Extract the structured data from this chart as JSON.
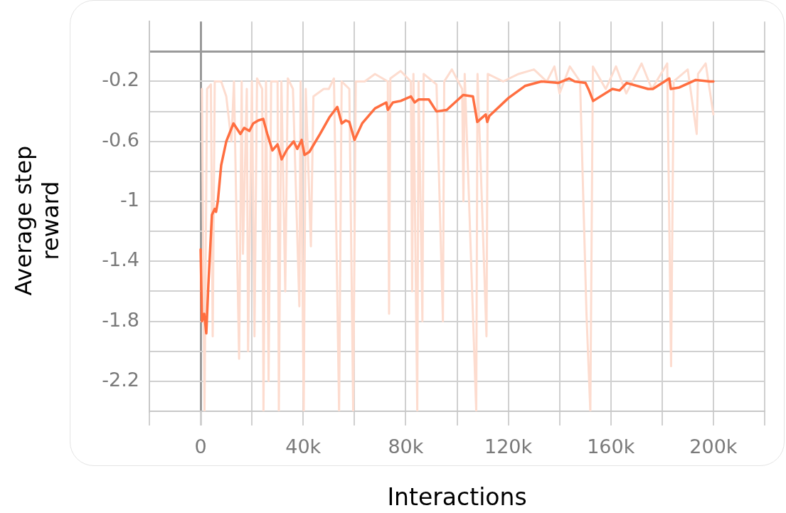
{
  "chart_data": {
    "type": "line",
    "xlabel": "Interactions",
    "ylabel": "Average step reward",
    "grid": true,
    "marker": "none",
    "line_style": "solid",
    "legend": false,
    "xlim": [
      -20000,
      220000
    ],
    "xticks": [
      {
        "value": -20000,
        "label": null
      },
      {
        "value": 0,
        "label": "0"
      },
      {
        "value": 20000,
        "label": null
      },
      {
        "value": 40000,
        "label": "40k"
      },
      {
        "value": 60000,
        "label": null
      },
      {
        "value": 80000,
        "label": "80k"
      },
      {
        "value": 100000,
        "label": null
      },
      {
        "value": 120000,
        "label": "120k"
      },
      {
        "value": 140000,
        "label": null
      },
      {
        "value": 160000,
        "label": "160k"
      },
      {
        "value": 180000,
        "label": null
      },
      {
        "value": 200000,
        "label": "200k"
      },
      {
        "value": 220000,
        "label": null
      }
    ],
    "ylim": [
      -2.4,
      0.2
    ],
    "yticks": [
      {
        "value": 0,
        "label": null
      },
      -0.2,
      {
        "value": -0.4,
        "label": null
      },
      -0.6,
      {
        "value": -0.8,
        "label": null
      },
      -1,
      {
        "value": -1.2,
        "label": null
      },
      -1.4,
      {
        "value": -1.6,
        "label": null
      },
      -1.8,
      {
        "value": -2,
        "label": null
      },
      -2.2,
      {
        "value": -2.4,
        "label": null
      }
    ],
    "series": [
      {
        "color": "#fddccf",
        "x": [
          500,
          1500,
          2500,
          4000,
          4700,
          5500,
          8000,
          10000,
          12000,
          13000,
          15000,
          16000,
          16500,
          18000,
          18500,
          20000,
          21000,
          22000,
          24000,
          24500,
          25500,
          26500,
          27500,
          30000,
          30500,
          31500,
          33000,
          34000,
          36000,
          38500,
          39000,
          40200,
          41000,
          43000,
          44000,
          48000,
          50000,
          52000,
          54000,
          55000,
          58000,
          59500,
          60500,
          64000,
          68000,
          73000,
          73500,
          74000,
          78000,
          82000,
          82500,
          83000,
          84500,
          85000,
          86500,
          87000,
          92000,
          94500,
          95000,
          98000,
          102000,
          102500,
          103000,
          107500,
          108000,
          111500,
          112000,
          118000,
          124000,
          130000,
          135000,
          138000,
          140000,
          144000,
          148000,
          150500,
          152000,
          153000,
          158000,
          162000,
          166000,
          172000,
          176000,
          182000,
          183500,
          184500,
          190000,
          193500,
          194000,
          197000,
          200000
        ],
        "values": [
          -0.25,
          -2.4,
          -0.25,
          -0.22,
          -1.9,
          -0.2,
          -0.2,
          -0.3,
          -0.6,
          -0.2,
          -2.05,
          -0.2,
          -1.35,
          -0.25,
          -2.0,
          -0.2,
          -1.9,
          -0.18,
          -0.25,
          -2.4,
          -0.2,
          -2.2,
          -0.2,
          -0.2,
          -2.4,
          -0.2,
          -1.6,
          -0.18,
          -0.25,
          -1.7,
          -0.2,
          -2.4,
          -0.25,
          -1.3,
          -0.3,
          -0.25,
          -0.25,
          -0.18,
          -2.4,
          -0.2,
          -0.25,
          -2.4,
          -0.2,
          -0.2,
          -0.15,
          -0.2,
          -1.75,
          -0.18,
          -0.13,
          -0.2,
          -1.6,
          -0.15,
          -2.4,
          -0.2,
          -1.8,
          -0.15,
          -0.22,
          -1.8,
          -0.2,
          -0.12,
          -0.25,
          -1.0,
          -0.15,
          -2.4,
          -0.15,
          -1.9,
          -0.15,
          -0.2,
          -0.15,
          -0.12,
          -0.2,
          -0.1,
          -0.28,
          -0.1,
          -0.2,
          -1.75,
          -2.4,
          -0.1,
          -0.25,
          -0.1,
          -0.28,
          -0.08,
          -0.25,
          -0.08,
          -2.1,
          -0.2,
          -0.12,
          -0.55,
          -0.15,
          -0.08,
          -0.42
        ]
      },
      {
        "color": "#ff6e40",
        "x": [
          0,
          500,
          1400,
          2200,
          3000,
          4400,
          5500,
          6000,
          6700,
          8000,
          10000,
          12800,
          15500,
          17000,
          19000,
          20500,
          22500,
          24400,
          26000,
          28000,
          30000,
          31600,
          33800,
          36300,
          37700,
          39400,
          40500,
          42400,
          46600,
          50200,
          53300,
          55000,
          56600,
          58000,
          60000,
          63000,
          68000,
          72400,
          73000,
          75000,
          78000,
          82000,
          83500,
          85000,
          89000,
          92000,
          96000,
          102400,
          106200,
          107900,
          111200,
          111800,
          112600,
          120100,
          126500,
          132900,
          139500,
          143700,
          145900,
          150100,
          151500,
          153100,
          160600,
          163400,
          166200,
          174500,
          176400,
          182800,
          183400,
          186700,
          193100,
          198600,
          200000
        ],
        "values": [
          -1.32,
          -1.8,
          -1.75,
          -1.88,
          -1.56,
          -1.09,
          -1.05,
          -1.07,
          -1.0,
          -0.76,
          -0.6,
          -0.48,
          -0.55,
          -0.51,
          -0.53,
          -0.48,
          -0.46,
          -0.45,
          -0.55,
          -0.66,
          -0.62,
          -0.72,
          -0.65,
          -0.6,
          -0.65,
          -0.59,
          -0.69,
          -0.67,
          -0.55,
          -0.44,
          -0.37,
          -0.48,
          -0.46,
          -0.47,
          -0.59,
          -0.48,
          -0.38,
          -0.34,
          -0.39,
          -0.34,
          -0.33,
          -0.3,
          -0.34,
          -0.32,
          -0.32,
          -0.4,
          -0.39,
          -0.29,
          -0.3,
          -0.47,
          -0.42,
          -0.47,
          -0.43,
          -0.31,
          -0.23,
          -0.2,
          -0.21,
          -0.18,
          -0.2,
          -0.21,
          -0.26,
          -0.33,
          -0.25,
          -0.26,
          -0.21,
          -0.25,
          -0.25,
          -0.18,
          -0.25,
          -0.24,
          -0.19,
          -0.2,
          -0.2
        ]
      }
    ]
  }
}
